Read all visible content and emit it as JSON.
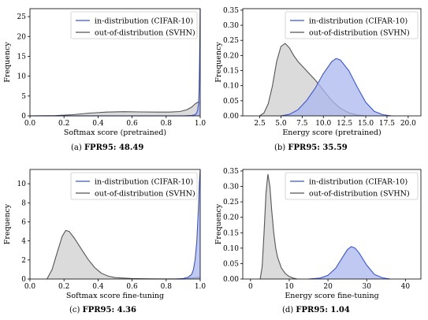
{
  "chart_data": [
    {
      "type": "area",
      "panel_label": "(a)",
      "caption_metric": "FPR95: 48.49",
      "xlabel": "Softmax score (pretrained)",
      "ylabel": "Frequency",
      "xlim": [
        0.0,
        1.0
      ],
      "ylim": [
        0,
        27
      ],
      "xticks": [
        0.0,
        0.2,
        0.4,
        0.6,
        0.8,
        1.0
      ],
      "xtick_labels": [
        "0.0",
        "0.2",
        "0.4",
        "0.6",
        "0.8",
        "1.0"
      ],
      "yticks": [
        0,
        5,
        10,
        15,
        20,
        25
      ],
      "ytick_labels": [
        "0",
        "5",
        "10",
        "15",
        "20",
        "25"
      ],
      "legend_position": "top-right",
      "series": [
        {
          "name": "in-distribution (CIFAR-10)",
          "color": "#3a55d6",
          "fill": "#aab7ee",
          "x": [
            0.0,
            0.9,
            0.95,
            0.97,
            0.98,
            0.985,
            0.99,
            0.993,
            0.996,
            0.998,
            1.0
          ],
          "y": [
            0,
            0,
            0.1,
            0.3,
            0.8,
            1.5,
            3,
            6,
            12,
            20,
            27
          ]
        },
        {
          "name": "out-of-distribution (SVHN)",
          "color": "#555555",
          "fill": "#cfcfcf",
          "x": [
            0.0,
            0.15,
            0.25,
            0.35,
            0.45,
            0.55,
            0.65,
            0.75,
            0.82,
            0.88,
            0.92,
            0.95,
            0.97,
            0.98,
            0.99,
            1.0
          ],
          "y": [
            0,
            0.05,
            0.3,
            0.7,
            0.95,
            1.05,
            1.0,
            0.95,
            0.95,
            1.1,
            1.5,
            2.2,
            3.0,
            3.3,
            3.5,
            3.3
          ]
        }
      ]
    },
    {
      "type": "area",
      "panel_label": "(b)",
      "caption_metric": "FPR95: 35.59",
      "xlabel": "Energy score (pretrained)",
      "ylabel": "Frequency",
      "xlim": [
        0.5,
        21.5
      ],
      "ylim": [
        0,
        0.355
      ],
      "xticks": [
        2.5,
        5.0,
        7.5,
        10.0,
        12.5,
        15.0,
        17.5,
        20.0
      ],
      "xtick_labels": [
        "2.5",
        "5.0",
        "7.5",
        "10.0",
        "12.5",
        "15.0",
        "17.5",
        "20.0"
      ],
      "yticks": [
        0.0,
        0.05,
        0.1,
        0.15,
        0.2,
        0.25,
        0.3,
        0.35
      ],
      "ytick_labels": [
        "0.00",
        "0.05",
        "0.10",
        "0.15",
        "0.20",
        "0.25",
        "0.30",
        "0.35"
      ],
      "legend_position": "top-right",
      "series": [
        {
          "name": "in-distribution (CIFAR-10)",
          "color": "#3a55d6",
          "fill": "#aab7ee",
          "x": [
            5.0,
            6.0,
            7.0,
            8.0,
            9.0,
            10.0,
            11.0,
            11.5,
            12.0,
            13.0,
            14.0,
            15.0,
            16.0,
            17.0,
            18.0
          ],
          "y": [
            0,
            0.005,
            0.02,
            0.05,
            0.09,
            0.14,
            0.18,
            0.19,
            0.185,
            0.15,
            0.095,
            0.045,
            0.015,
            0.004,
            0
          ]
        },
        {
          "name": "out-of-distribution (SVHN)",
          "color": "#555555",
          "fill": "#cfcfcf",
          "x": [
            2.5,
            3.0,
            3.5,
            4.0,
            4.5,
            5.0,
            5.5,
            6.0,
            6.5,
            7.0,
            8.0,
            9.0,
            10.0,
            11.0,
            12.0,
            13.0,
            14.0,
            15.0
          ],
          "y": [
            0,
            0.01,
            0.04,
            0.1,
            0.18,
            0.23,
            0.24,
            0.225,
            0.2,
            0.18,
            0.15,
            0.12,
            0.085,
            0.05,
            0.025,
            0.01,
            0.003,
            0
          ]
        }
      ]
    },
    {
      "type": "area",
      "panel_label": "(c)",
      "caption_metric": "FPR95: 4.36",
      "xlabel": "Softmax score fine-tuning",
      "ylabel": "Frequency",
      "xlim": [
        0.0,
        1.0
      ],
      "ylim": [
        0,
        11.5
      ],
      "xticks": [
        0.0,
        0.2,
        0.4,
        0.6,
        0.8,
        1.0
      ],
      "xtick_labels": [
        "0.0",
        "0.2",
        "0.4",
        "0.6",
        "0.8",
        "1.0"
      ],
      "yticks": [
        0,
        2,
        4,
        6,
        8,
        10
      ],
      "ytick_labels": [
        "0",
        "2",
        "4",
        "6",
        "8",
        "10"
      ],
      "legend_position": "top-right",
      "series": [
        {
          "name": "in-distribution (CIFAR-10)",
          "color": "#3a55d6",
          "fill": "#aab7ee",
          "x": [
            0.85,
            0.9,
            0.93,
            0.95,
            0.96,
            0.97,
            0.98,
            0.99,
            0.995,
            1.0
          ],
          "y": [
            0,
            0.05,
            0.2,
            0.5,
            1.0,
            2.0,
            4.0,
            7.5,
            10.0,
            11.4
          ]
        },
        {
          "name": "out-of-distribution (SVHN)",
          "color": "#555555",
          "fill": "#cfcfcf",
          "x": [
            0.1,
            0.13,
            0.16,
            0.19,
            0.21,
            0.23,
            0.26,
            0.3,
            0.34,
            0.38,
            0.42,
            0.46,
            0.5,
            0.6,
            0.7,
            0.8,
            0.9,
            1.0
          ],
          "y": [
            0,
            1.0,
            2.8,
            4.5,
            5.1,
            5.0,
            4.3,
            3.2,
            2.1,
            1.2,
            0.6,
            0.3,
            0.15,
            0.05,
            0.02,
            0.01,
            0.01,
            0.2
          ]
        }
      ]
    },
    {
      "type": "area",
      "panel_label": "(d)",
      "caption_metric": "FPR95: 1.04",
      "xlabel": "Energy score fine-tuning",
      "ylabel": "Frequency",
      "xlim": [
        -2,
        44
      ],
      "ylim": [
        0,
        0.355
      ],
      "xticks": [
        0,
        10,
        20,
        30,
        40
      ],
      "xtick_labels": [
        "0",
        "10",
        "20",
        "30",
        "40"
      ],
      "yticks": [
        0.0,
        0.05,
        0.1,
        0.15,
        0.2,
        0.25,
        0.3,
        0.35
      ],
      "ytick_labels": [
        "0.00",
        "0.05",
        "0.10",
        "0.15",
        "0.20",
        "0.25",
        "0.30",
        "0.35"
      ],
      "legend_position": "top-right",
      "series": [
        {
          "name": "in-distribution (CIFAR-10)",
          "color": "#3a55d6",
          "fill": "#aab7ee",
          "x": [
            15,
            18,
            20,
            22,
            24,
            25,
            26,
            27,
            28,
            30,
            32,
            34,
            36
          ],
          "y": [
            0,
            0.003,
            0.012,
            0.035,
            0.075,
            0.095,
            0.105,
            0.1,
            0.085,
            0.045,
            0.015,
            0.004,
            0
          ]
        },
        {
          "name": "out-of-distribution (SVHN)",
          "color": "#555555",
          "fill": "#cfcfcf",
          "x": [
            2.5,
            3.0,
            3.5,
            4.0,
            4.5,
            5.0,
            5.5,
            6.0,
            6.5,
            7.0,
            8.0,
            9.0,
            10.0,
            11.0,
            12.0
          ],
          "y": [
            0,
            0.04,
            0.15,
            0.28,
            0.34,
            0.3,
            0.22,
            0.15,
            0.1,
            0.07,
            0.035,
            0.018,
            0.008,
            0.003,
            0
          ]
        }
      ]
    }
  ]
}
